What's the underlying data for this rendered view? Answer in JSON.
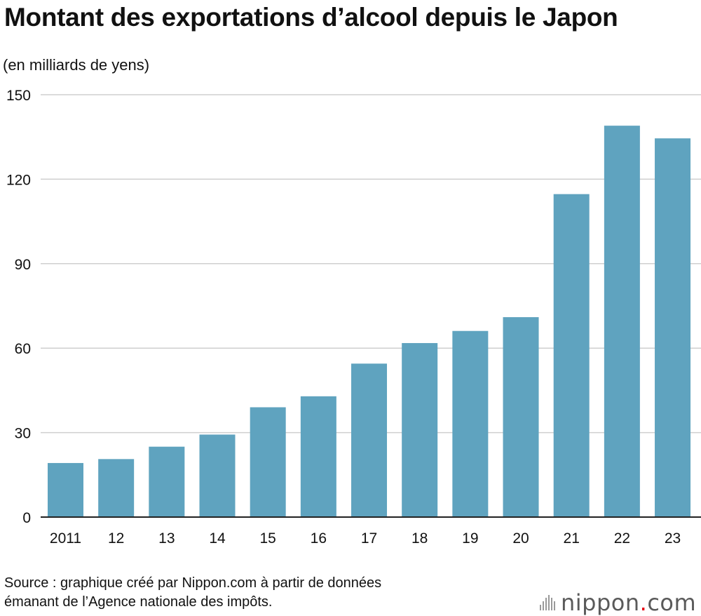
{
  "header": {
    "title": "Montant des exportations d’alcool depuis le Japon",
    "unit": "(en milliards de yens)"
  },
  "footer": {
    "source_line1": "Source : graphique créé par Nippon.com à partir de données",
    "source_line2": "émanant de l’Agence nationale des impôts.",
    "logo_main": "nippon",
    "logo_dot": ".",
    "logo_suffix": "com"
  },
  "colors": {
    "bar": "#5fa3bf",
    "grid": "#cfcfcf",
    "axis": "#222222"
  },
  "chart_data": {
    "type": "bar",
    "title": "Montant des exportations d’alcool depuis le Japon",
    "ylabel": "(en milliards de yens)",
    "xlabel": "",
    "categories": [
      "2011",
      "12",
      "13",
      "14",
      "15",
      "16",
      "17",
      "18",
      "19",
      "20",
      "21",
      "22",
      "23"
    ],
    "values": [
      19.2,
      20.6,
      25.0,
      29.3,
      39.0,
      42.9,
      54.5,
      61.8,
      66.1,
      71.0,
      114.7,
      139.0,
      134.5
    ],
    "ylim": [
      0,
      150
    ],
    "yticks": [
      0,
      30,
      60,
      90,
      120,
      150
    ],
    "grid": true
  }
}
